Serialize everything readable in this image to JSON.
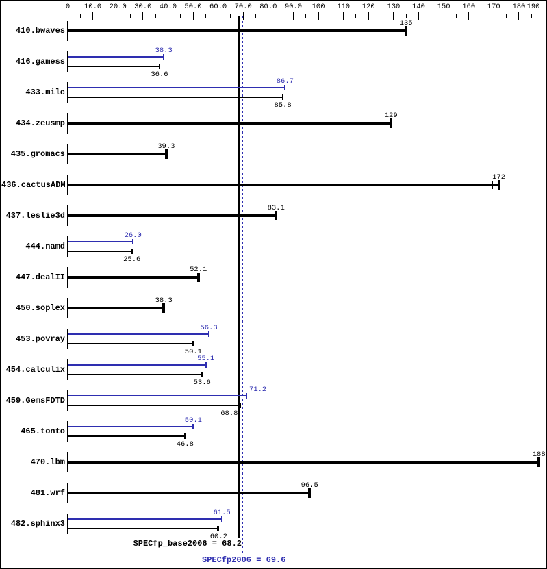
{
  "chart_data": {
    "type": "bar",
    "orientation": "horizontal",
    "axis": {
      "min": 0,
      "max": 190,
      "major_step": 10,
      "minor_step": 5,
      "tick_labels": [
        "0",
        "10.0",
        "20.0",
        "30.0",
        "40.0",
        "50.0",
        "60.0",
        "70.0",
        "80.0",
        "90.0",
        "100",
        "110",
        "120",
        "130",
        "140",
        "150",
        "160",
        "170",
        "180",
        "190"
      ]
    },
    "colors": {
      "base": "#000000",
      "peak": "#2e2eb0"
    },
    "series_meta": [
      {
        "id": "peak",
        "legend": "SPECfp2006",
        "color": "#2e2eb0"
      },
      {
        "id": "base",
        "legend": "SPECfp_base2006",
        "color": "#000000"
      }
    ],
    "reference_lines": [
      {
        "name": "base-mean",
        "value": 68.2,
        "style": "solid",
        "color": "#000000"
      },
      {
        "name": "peak-mean",
        "value": 69.6,
        "style": "dotted",
        "color": "#2e2eb0"
      }
    ],
    "benchmarks": [
      {
        "name": "410.bwaves",
        "base": 135,
        "base_label": "135"
      },
      {
        "name": "416.gamess",
        "peak": 38.3,
        "peak_label": "38.3",
        "base": 36.6,
        "base_label": "36.6"
      },
      {
        "name": "433.milc",
        "peak": 86.7,
        "peak_label": "86.7",
        "base": 85.8,
        "base_label": "85.8"
      },
      {
        "name": "434.zeusmp",
        "base": 129,
        "base_label": "129"
      },
      {
        "name": "435.gromacs",
        "base": 39.3,
        "base_label": "39.3"
      },
      {
        "name": "436.cactusADM",
        "base": 172,
        "base_label": "172",
        "base_run_ticks": [
          169.5
        ]
      },
      {
        "name": "437.leslie3d",
        "base": 83.1,
        "base_label": "83.1"
      },
      {
        "name": "444.namd",
        "peak": 26.0,
        "peak_label": "26.0",
        "base": 25.6,
        "base_label": "25.6"
      },
      {
        "name": "447.dealII",
        "base": 52.1,
        "base_label": "52.1"
      },
      {
        "name": "450.soplex",
        "base": 38.3,
        "base_label": "38.3"
      },
      {
        "name": "453.povray",
        "peak": 56.3,
        "peak_label": "56.3",
        "base": 50.1,
        "base_label": "50.1",
        "peak_run_ticks": [
          55.7
        ]
      },
      {
        "name": "454.calculix",
        "peak": 55.1,
        "peak_label": "55.1",
        "base": 53.6,
        "base_label": "53.6"
      },
      {
        "name": "459.GemsFDTD",
        "peak": 71.2,
        "peak_label": "71.2",
        "base": 68.8,
        "base_label": "68.8",
        "peak_label_dx": 17,
        "base_label_dx": -16
      },
      {
        "name": "465.tonto",
        "peak": 50.1,
        "peak_label": "50.1",
        "base": 46.8,
        "base_label": "46.8"
      },
      {
        "name": "470.lbm",
        "base": 188,
        "base_label": "188"
      },
      {
        "name": "481.wrf",
        "base": 96.5,
        "base_label": "96.5",
        "base_run_ticks": [
          96.0
        ]
      },
      {
        "name": "482.sphinx3",
        "peak": 61.5,
        "peak_label": "61.5",
        "base": 60.2,
        "base_label": "60.2",
        "base_run_ticks": [
          59.8
        ]
      }
    ],
    "footer": {
      "base_text": "SPECfp_base2006 = 68.2",
      "peak_text": "SPECfp2006 = 69.6"
    }
  }
}
